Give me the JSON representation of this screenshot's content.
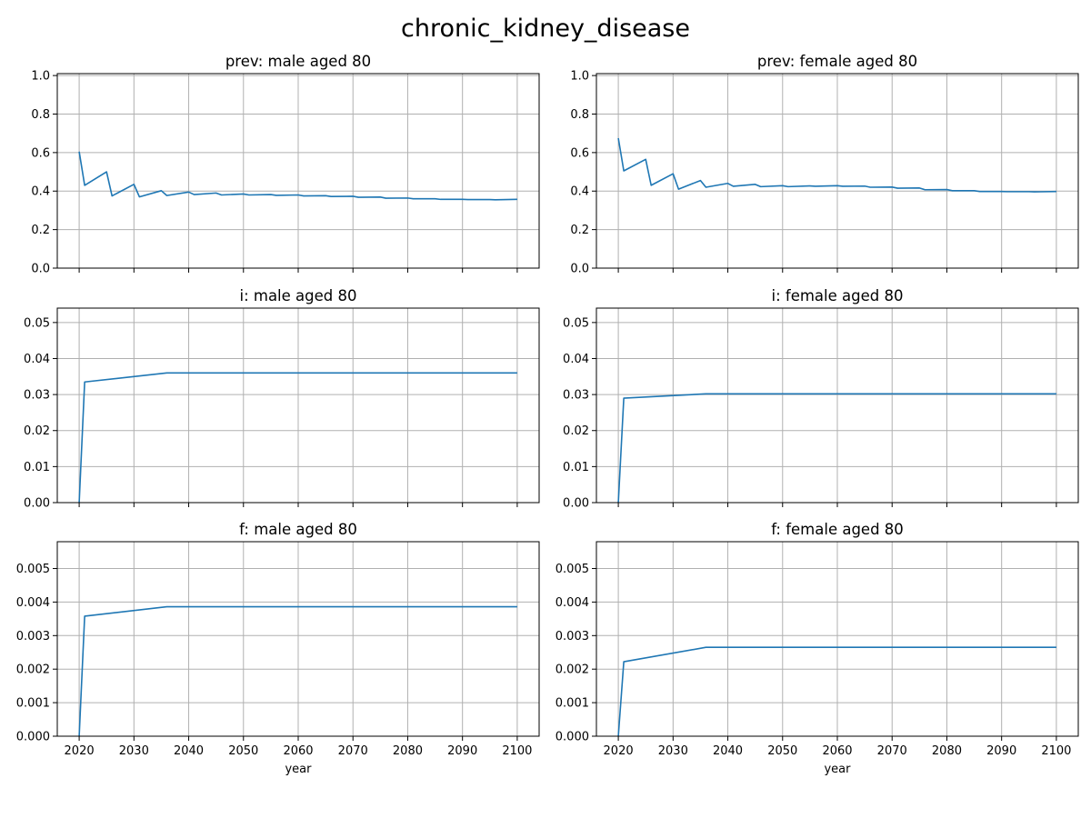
{
  "figure": {
    "title": "chronic_kidney_disease",
    "line_color": "#1f77b4",
    "grid_color": "#b0b0b0"
  },
  "chart_data": [
    {
      "type": "line",
      "title": "prev: male aged 80",
      "xlabel": "",
      "ylabel": "",
      "xlim": [
        2016,
        2104
      ],
      "ylim": [
        0,
        1.01
      ],
      "xticks": [
        2020,
        2030,
        2040,
        2050,
        2060,
        2070,
        2080,
        2090,
        2100
      ],
      "yticks": [
        0.0,
        0.2,
        0.4,
        0.6,
        0.8,
        1.0
      ],
      "ytick_labels": [
        "0.0",
        "0.2",
        "0.4",
        "0.6",
        "0.8",
        "1.0"
      ],
      "show_xtick_labels": false,
      "grid": true,
      "series": [
        {
          "x": [
            2020,
            2021,
            2025,
            2026,
            2030,
            2031,
            2035,
            2036,
            2040,
            2041,
            2045,
            2046,
            2050,
            2051,
            2055,
            2056,
            2060,
            2061,
            2065,
            2066,
            2070,
            2071,
            2075,
            2076,
            2080,
            2081,
            2085,
            2086,
            2090,
            2091,
            2095,
            2096,
            2100
          ],
          "y": [
            0.605,
            0.43,
            0.5,
            0.375,
            0.435,
            0.37,
            0.402,
            0.377,
            0.395,
            0.382,
            0.39,
            0.38,
            0.385,
            0.38,
            0.382,
            0.378,
            0.38,
            0.375,
            0.376,
            0.372,
            0.373,
            0.368,
            0.369,
            0.363,
            0.364,
            0.36,
            0.36,
            0.357,
            0.357,
            0.356,
            0.356,
            0.355,
            0.357
          ]
        }
      ]
    },
    {
      "type": "line",
      "title": "prev: female aged 80",
      "xlabel": "",
      "ylabel": "",
      "xlim": [
        2016,
        2104
      ],
      "ylim": [
        0,
        1.01
      ],
      "xticks": [
        2020,
        2030,
        2040,
        2050,
        2060,
        2070,
        2080,
        2090,
        2100
      ],
      "yticks": [
        0.0,
        0.2,
        0.4,
        0.6,
        0.8,
        1.0
      ],
      "ytick_labels": [
        "0.0",
        "0.2",
        "0.4",
        "0.6",
        "0.8",
        "1.0"
      ],
      "show_xtick_labels": false,
      "grid": true,
      "series": [
        {
          "x": [
            2020,
            2021,
            2025,
            2026,
            2030,
            2031,
            2035,
            2036,
            2040,
            2041,
            2045,
            2046,
            2050,
            2051,
            2055,
            2056,
            2060,
            2061,
            2065,
            2066,
            2070,
            2071,
            2075,
            2076,
            2080,
            2081,
            2085,
            2086,
            2090,
            2091,
            2095,
            2096,
            2100
          ],
          "y": [
            0.675,
            0.505,
            0.565,
            0.43,
            0.49,
            0.41,
            0.455,
            0.42,
            0.44,
            0.425,
            0.435,
            0.423,
            0.428,
            0.423,
            0.427,
            0.425,
            0.428,
            0.425,
            0.426,
            0.42,
            0.421,
            0.415,
            0.416,
            0.407,
            0.408,
            0.402,
            0.402,
            0.398,
            0.398,
            0.397,
            0.397,
            0.396,
            0.398
          ]
        }
      ]
    },
    {
      "type": "line",
      "title": "i: male aged 80",
      "xlabel": "",
      "ylabel": "",
      "xlim": [
        2016,
        2104
      ],
      "ylim": [
        0,
        0.054
      ],
      "xticks": [
        2020,
        2030,
        2040,
        2050,
        2060,
        2070,
        2080,
        2090,
        2100
      ],
      "yticks": [
        0.0,
        0.01,
        0.02,
        0.03,
        0.04,
        0.05
      ],
      "ytick_labels": [
        "0.00",
        "0.01",
        "0.02",
        "0.03",
        "0.04",
        "0.05"
      ],
      "show_xtick_labels": false,
      "grid": true,
      "series": [
        {
          "x": [
            2020,
            2021,
            2036,
            2100
          ],
          "y": [
            0.0,
            0.0335,
            0.036,
            0.036
          ]
        }
      ]
    },
    {
      "type": "line",
      "title": "i: female aged 80",
      "xlabel": "",
      "ylabel": "",
      "xlim": [
        2016,
        2104
      ],
      "ylim": [
        0,
        0.054
      ],
      "xticks": [
        2020,
        2030,
        2040,
        2050,
        2060,
        2070,
        2080,
        2090,
        2100
      ],
      "yticks": [
        0.0,
        0.01,
        0.02,
        0.03,
        0.04,
        0.05
      ],
      "ytick_labels": [
        "0.00",
        "0.01",
        "0.02",
        "0.03",
        "0.04",
        "0.05"
      ],
      "show_xtick_labels": false,
      "grid": true,
      "series": [
        {
          "x": [
            2020,
            2021,
            2036,
            2100
          ],
          "y": [
            0.0,
            0.029,
            0.0302,
            0.0302
          ]
        }
      ]
    },
    {
      "type": "line",
      "title": "f: male aged 80",
      "xlabel": "year",
      "ylabel": "",
      "xlim": [
        2016,
        2104
      ],
      "ylim": [
        0,
        0.0058
      ],
      "xticks": [
        2020,
        2030,
        2040,
        2050,
        2060,
        2070,
        2080,
        2090,
        2100
      ],
      "xtick_labels": [
        "2020",
        "2030",
        "2040",
        "2050",
        "2060",
        "2070",
        "2080",
        "2090",
        "2100"
      ],
      "yticks": [
        0.0,
        0.001,
        0.002,
        0.003,
        0.004,
        0.005
      ],
      "ytick_labels": [
        "0.000",
        "0.001",
        "0.002",
        "0.003",
        "0.004",
        "0.005"
      ],
      "show_xtick_labels": true,
      "grid": true,
      "series": [
        {
          "x": [
            2020,
            2021,
            2036,
            2100
          ],
          "y": [
            0.0,
            0.00358,
            0.00386,
            0.00386
          ]
        }
      ]
    },
    {
      "type": "line",
      "title": "f: female aged 80",
      "xlabel": "year",
      "ylabel": "",
      "xlim": [
        2016,
        2104
      ],
      "ylim": [
        0,
        0.0058
      ],
      "xticks": [
        2020,
        2030,
        2040,
        2050,
        2060,
        2070,
        2080,
        2090,
        2100
      ],
      "xtick_labels": [
        "2020",
        "2030",
        "2040",
        "2050",
        "2060",
        "2070",
        "2080",
        "2090",
        "2100"
      ],
      "yticks": [
        0.0,
        0.001,
        0.002,
        0.003,
        0.004,
        0.005
      ],
      "ytick_labels": [
        "0.000",
        "0.001",
        "0.002",
        "0.003",
        "0.004",
        "0.005"
      ],
      "show_xtick_labels": true,
      "grid": true,
      "series": [
        {
          "x": [
            2020,
            2021,
            2036,
            2100
          ],
          "y": [
            0.0,
            0.00222,
            0.00265,
            0.00265
          ]
        }
      ]
    }
  ]
}
